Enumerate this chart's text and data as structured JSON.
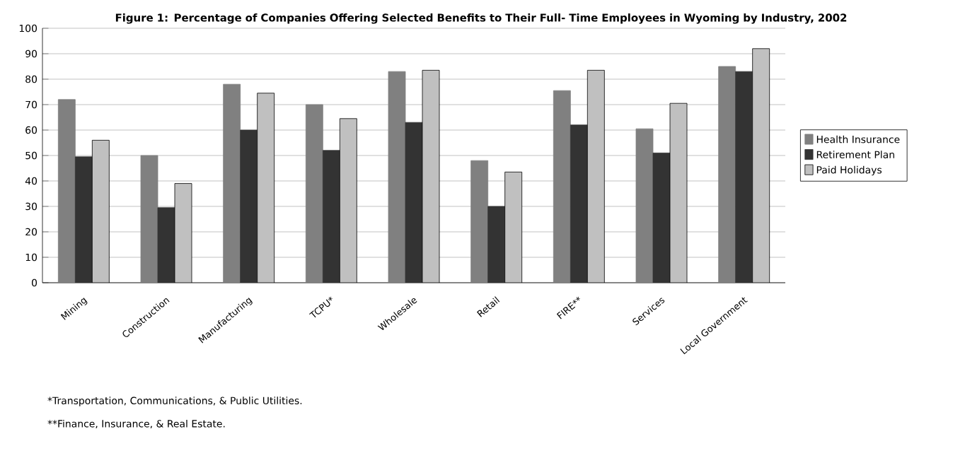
{
  "chart_data": {
    "type": "bar",
    "title": "Figure 1:  Percentage of Companies Offering Selected Benefits to Their Full- Time Employees in Wyoming by Industry, 2002",
    "categories": [
      "Mining",
      "Construction",
      "Manufacturing",
      "TCPU*",
      "Wholesale",
      "Retail",
      "FIRE**",
      "Services",
      "Local Government"
    ],
    "series": [
      {
        "name": "Health Insurance",
        "color": "#808080",
        "values": [
          72,
          50,
          78,
          70,
          83,
          48,
          75.5,
          60.5,
          85
        ]
      },
      {
        "name": "Retirement Plan",
        "color": "#333333",
        "values": [
          49.5,
          29.5,
          60,
          52,
          63,
          30,
          62,
          51,
          83
        ]
      },
      {
        "name": "Paid Holidays",
        "color": "#c0c0c0",
        "values": [
          56,
          39,
          74.5,
          64.5,
          83.5,
          43.5,
          83.5,
          70.5,
          92
        ]
      }
    ],
    "ylim": [
      0,
      100
    ],
    "yticks": [
      0,
      10,
      20,
      30,
      40,
      50,
      60,
      70,
      80,
      90,
      100
    ],
    "grid": "y",
    "legend": "right",
    "annotations": [
      "*Transportation, Communications, & Public Utilities.",
      "**Finance, Insurance, & Real Estate."
    ]
  }
}
